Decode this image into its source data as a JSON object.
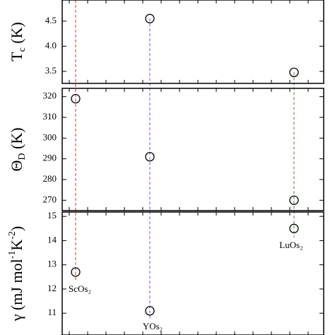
{
  "chart_data": [
    {
      "type": "scatter",
      "y_label": [
        "T",
        "c",
        " (K)"
      ],
      "label_script": "sub",
      "values": [
        null,
        4.55,
        3.48
      ],
      "ylim": [
        3.26,
        4.92
      ],
      "yticks": [
        3.5,
        4.0,
        4.5
      ]
    },
    {
      "type": "scatter",
      "y_label": [
        "Θ",
        "D",
        " (K)"
      ],
      "label_script": "sub",
      "values": [
        319,
        291,
        270
      ],
      "ylim": [
        265,
        324
      ],
      "yticks": [
        270,
        280,
        290,
        300,
        310,
        320
      ]
    },
    {
      "type": "scatter",
      "y_label": [
        "γ (mJ mol",
        "-1",
        "K",
        "-2",
        ")"
      ],
      "label_script": "super",
      "categories": [
        "ScOs₂",
        "YOs₂",
        "LuOs₂"
      ],
      "colors": [
        "#d0312d",
        "#8a3fe0",
        "#3a8a2e"
      ],
      "values": [
        12.7,
        11.1,
        14.5
      ],
      "ylim": [
        10.1,
        15.18
      ],
      "yticks": [
        11,
        12,
        13,
        14,
        15
      ]
    }
  ]
}
